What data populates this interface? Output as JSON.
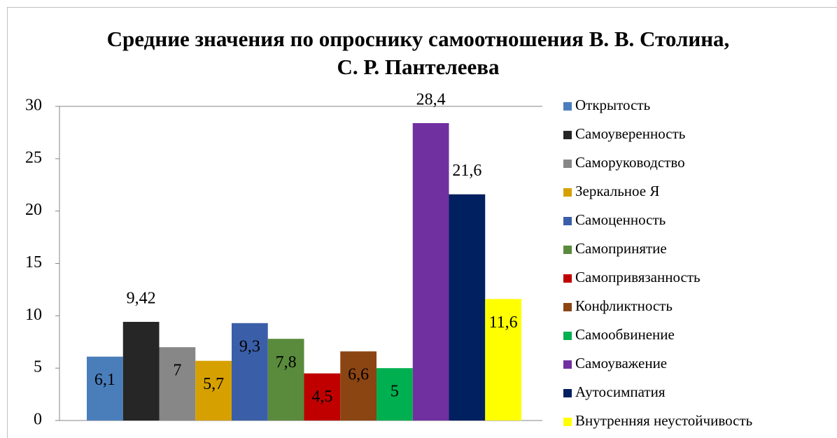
{
  "chart_data": {
    "type": "bar",
    "title": "Средние значения по опроснику самоотношения В. В. Столина, С. Р. Пантелеева",
    "categories": [
      null
    ],
    "series": [
      {
        "name": "Открытость",
        "color": "#4a7ebb",
        "values": [
          6.1
        ],
        "value_labels": [
          "6,1"
        ]
      },
      {
        "name": "Самоуверенность",
        "color": "#262626",
        "values": [
          9.42
        ],
        "value_labels": [
          "9,42"
        ]
      },
      {
        "name": "Саморуководство",
        "color": "#878787",
        "values": [
          7
        ],
        "value_labels": [
          "7"
        ]
      },
      {
        "name": "Зеркальное Я",
        "color": "#d6a000",
        "values": [
          5.7
        ],
        "value_labels": [
          "5,7"
        ]
      },
      {
        "name": "Самоценность",
        "color": "#3a5fa8",
        "values": [
          9.3
        ],
        "value_labels": [
          "9,3"
        ]
      },
      {
        "name": "Самопринятие",
        "color": "#5a8a3c",
        "values": [
          7.8
        ],
        "value_labels": [
          "7,8"
        ]
      },
      {
        "name": "Самопривязанность",
        "color": "#c00000",
        "values": [
          4.5
        ],
        "value_labels": [
          "4,5"
        ]
      },
      {
        "name": "Конфликтность",
        "color": "#8b4513",
        "values": [
          6.6
        ],
        "value_labels": [
          "6,6"
        ]
      },
      {
        "name": "Самообвинение",
        "color": "#00b050",
        "values": [
          5
        ],
        "value_labels": [
          "5"
        ]
      },
      {
        "name": "Самоуважение",
        "color": "#7030a0",
        "values": [
          28.4
        ],
        "value_labels": [
          "28,4"
        ]
      },
      {
        "name": "Аутосимпатия",
        "color": "#002060",
        "values": [
          21.6
        ],
        "value_labels": [
          "21,6"
        ]
      },
      {
        "name": "Внутренняя неустойчивость",
        "color": "#ffff00",
        "values": [
          11.6
        ],
        "value_labels": [
          "11,6"
        ]
      }
    ],
    "ylim": [
      0,
      30
    ],
    "yticks": [
      0,
      5,
      10,
      15,
      20,
      25,
      30
    ],
    "grid": false,
    "legend": "right"
  }
}
